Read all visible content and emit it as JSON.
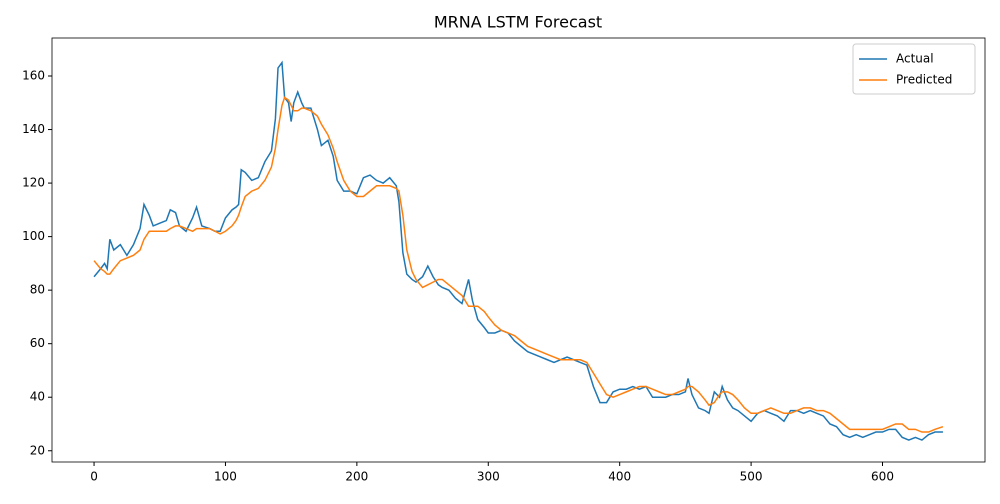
{
  "chart_data": {
    "type": "line",
    "title": "MRNA LSTM Forecast",
    "x": [
      0,
      5,
      8,
      10,
      12,
      15,
      20,
      25,
      30,
      35,
      38,
      42,
      45,
      50,
      55,
      58,
      62,
      65,
      70,
      75,
      78,
      82,
      88,
      92,
      96,
      100,
      105,
      108,
      110,
      112,
      115,
      120,
      125,
      130,
      135,
      138,
      140,
      143,
      145,
      148,
      150,
      152,
      155,
      158,
      160,
      165,
      170,
      173,
      178,
      182,
      185,
      190,
      195,
      200,
      205,
      210,
      215,
      220,
      225,
      230,
      232,
      235,
      238,
      242,
      245,
      250,
      254,
      258,
      262,
      265,
      270,
      275,
      280,
      285,
      288,
      292,
      297,
      300,
      305,
      310,
      315,
      320,
      325,
      330,
      340,
      345,
      350,
      355,
      360,
      365,
      370,
      375,
      380,
      385,
      390,
      395,
      400,
      405,
      410,
      415,
      420,
      425,
      430,
      435,
      440,
      445,
      450,
      452,
      455,
      460,
      465,
      468,
      472,
      476,
      478,
      482,
      486,
      490,
      495,
      500,
      505,
      510,
      515,
      520,
      525,
      530,
      535,
      540,
      545,
      550,
      555,
      560,
      565,
      570,
      575,
      580,
      585,
      590,
      595,
      600,
      605,
      610,
      615,
      620,
      625,
      630,
      635,
      640,
      646
    ],
    "series": [
      {
        "name": "Actual",
        "color": "#1f77b4",
        "values": [
          85,
          88,
          90,
          88,
          99,
          95,
          97,
          93,
          97,
          103,
          112,
          108,
          104,
          105,
          106,
          110,
          109,
          104,
          102,
          107,
          111,
          104,
          103,
          102,
          102,
          107,
          110,
          111,
          112,
          125,
          124,
          121,
          122,
          128,
          132,
          144,
          163,
          165,
          152,
          150,
          143,
          150,
          154,
          150,
          148,
          148,
          140,
          134,
          136,
          130,
          121,
          117,
          117,
          116,
          122,
          123,
          121,
          120,
          122,
          119,
          113,
          94,
          86,
          84,
          83,
          85,
          89,
          85,
          82,
          81,
          80,
          77,
          75,
          84,
          76,
          69,
          66,
          64,
          64,
          65,
          64,
          61,
          59,
          57,
          55,
          54,
          53,
          54,
          55,
          54,
          53,
          52,
          44,
          38,
          38,
          42,
          43,
          43,
          44,
          43,
          44,
          40,
          40,
          40,
          41,
          41,
          42,
          47,
          41,
          36,
          35,
          34,
          42,
          40,
          44,
          39,
          36,
          35,
          33,
          31,
          34,
          35,
          34,
          33,
          31,
          35,
          35,
          34,
          35,
          34,
          33,
          30,
          29,
          26,
          25,
          26,
          25,
          26,
          27,
          27,
          28,
          28,
          25,
          24,
          25,
          24,
          26,
          27,
          27
        ]
      },
      {
        "name": "Predicted",
        "color": "#ff7f0e",
        "values": [
          91,
          88,
          87,
          86,
          86,
          88,
          91,
          92,
          93,
          95,
          99,
          102,
          102,
          102,
          102,
          103,
          104,
          104,
          103,
          102,
          103,
          103,
          103,
          102,
          101,
          102,
          104,
          106,
          108,
          111,
          115,
          117,
          118,
          121,
          126,
          133,
          140,
          149,
          152,
          151,
          149,
          147,
          147,
          148,
          148,
          147,
          145,
          142,
          138,
          133,
          128,
          121,
          117,
          115,
          115,
          117,
          119,
          119,
          119,
          118,
          117,
          108,
          95,
          87,
          84,
          81,
          82,
          83,
          84,
          84,
          82,
          80,
          78,
          74,
          74,
          74,
          72,
          70,
          67,
          65,
          64,
          63,
          61,
          59,
          57,
          56,
          55,
          54,
          54,
          54,
          54,
          53,
          49,
          45,
          41,
          40,
          41,
          42,
          43,
          44,
          44,
          43,
          42,
          41,
          41,
          42,
          43,
          44,
          44,
          42,
          39,
          37,
          38,
          41,
          42,
          42,
          41,
          39,
          36,
          34,
          34,
          35,
          36,
          35,
          34,
          34,
          35,
          36,
          36,
          35,
          35,
          34,
          32,
          30,
          28,
          28,
          28,
          28,
          28,
          28,
          29,
          30,
          30,
          28,
          28,
          27,
          27,
          28,
          29
        ]
      }
    ],
    "xlim": [
      -32,
      678
    ],
    "ylim": [
      15.8,
      174.2
    ],
    "xticks": [
      0,
      100,
      200,
      300,
      400,
      500,
      600
    ],
    "yticks": [
      20,
      40,
      60,
      80,
      100,
      120,
      140,
      160
    ],
    "legend": "upper right"
  }
}
